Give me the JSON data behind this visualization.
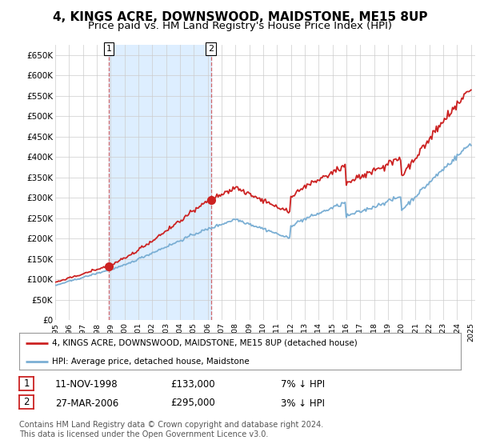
{
  "title": "4, KINGS ACRE, DOWNSWOOD, MAIDSTONE, ME15 8UP",
  "subtitle": "Price paid vs. HM Land Registry's House Price Index (HPI)",
  "ylim": [
    0,
    675000
  ],
  "yticks": [
    0,
    50000,
    100000,
    150000,
    200000,
    250000,
    300000,
    350000,
    400000,
    450000,
    500000,
    550000,
    600000,
    650000
  ],
  "ytick_labels": [
    "£0",
    "£50K",
    "£100K",
    "£150K",
    "£200K",
    "£250K",
    "£300K",
    "£350K",
    "£400K",
    "£450K",
    "£500K",
    "£550K",
    "£600K",
    "£650K"
  ],
  "hpi_color": "#7bafd4",
  "price_color": "#cc2222",
  "marker_color": "#cc2222",
  "shade_color": "#ddeeff",
  "sale1_year": 1998.87,
  "sale1_price": 133000,
  "sale1_label": "1",
  "sale2_year": 2006.24,
  "sale2_price": 295000,
  "sale2_label": "2",
  "legend_line1": "4, KINGS ACRE, DOWNSWOOD, MAIDSTONE, ME15 8UP (detached house)",
  "legend_line2": "HPI: Average price, detached house, Maidstone",
  "table_rows": [
    {
      "num": "1",
      "date": "11-NOV-1998",
      "price": "£133,000",
      "hpi": "7% ↓ HPI"
    },
    {
      "num": "2",
      "date": "27-MAR-2006",
      "price": "£295,000",
      "hpi": "3% ↓ HPI"
    }
  ],
  "footer": "Contains HM Land Registry data © Crown copyright and database right 2024.\nThis data is licensed under the Open Government Licence v3.0.",
  "background_color": "#ffffff",
  "grid_color": "#cccccc",
  "title_fontsize": 11,
  "subtitle_fontsize": 9.5
}
